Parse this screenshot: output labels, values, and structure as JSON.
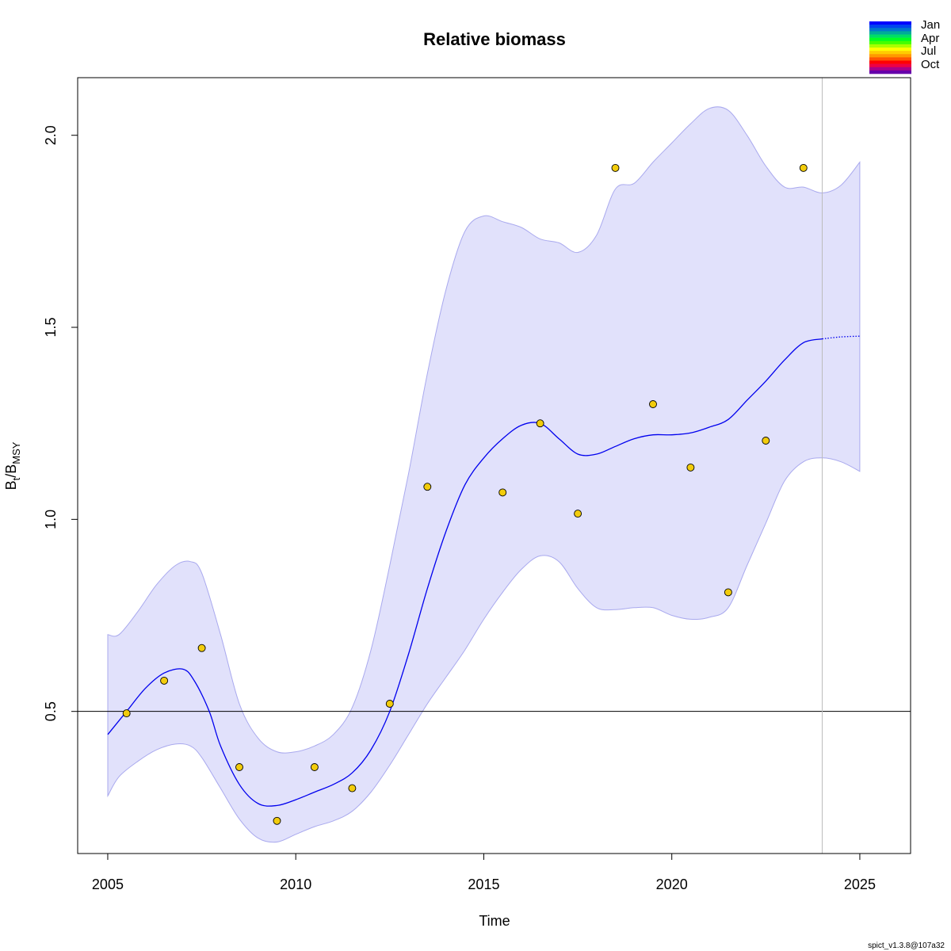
{
  "chart_data": {
    "type": "line",
    "title": "Relative biomass",
    "xlabel": "Time",
    "ylabel_main": "B",
    "ylabel_sub1": "t",
    "ylabel_slash": "/B",
    "ylabel_sub2": "MSY",
    "xlim": [
      2004.2,
      2026.35
    ],
    "ylim": [
      0.13,
      2.15
    ],
    "x_ticks": [
      2005,
      2010,
      2015,
      2020,
      2025
    ],
    "x_tick_labels": [
      "2005",
      "2010",
      "2015",
      "2020",
      "2025"
    ],
    "y_ticks": [
      0.5,
      1.0,
      1.5,
      2.0
    ],
    "y_tick_labels": [
      "0.5",
      "1.0",
      "1.5",
      "2.0"
    ],
    "reference_line_y": 0.5,
    "vertical_line_x": 2024,
    "grid": false,
    "colors": {
      "line": "#0000ee",
      "band_fill": "#e1e1fb",
      "band_edge": "#a9a9ee",
      "point_fill": "#f2cc0c",
      "point_edge": "#000000",
      "ref_line": "#000000",
      "vline": "#bdbdbd"
    },
    "estimate": {
      "x": [
        2005.0,
        2005.5,
        2006.0,
        2006.5,
        2007.0,
        2007.3,
        2007.7,
        2008.0,
        2008.5,
        2009.0,
        2009.5,
        2010.0,
        2010.5,
        2011.0,
        2011.5,
        2012.0,
        2012.5,
        2013.0,
        2013.5,
        2014.0,
        2014.5,
        2015.0,
        2015.5,
        2016.0,
        2016.5,
        2017.0,
        2017.5,
        2018.0,
        2018.5,
        2019.0,
        2019.5,
        2020.0,
        2020.5,
        2021.0,
        2021.5,
        2022.0,
        2022.5,
        2023.0,
        2023.5,
        2024.0
      ],
      "y": [
        0.44,
        0.5,
        0.56,
        0.6,
        0.61,
        0.58,
        0.5,
        0.41,
        0.31,
        0.26,
        0.255,
        0.27,
        0.29,
        0.31,
        0.34,
        0.4,
        0.5,
        0.65,
        0.82,
        0.97,
        1.09,
        1.16,
        1.21,
        1.245,
        1.25,
        1.21,
        1.17,
        1.17,
        1.19,
        1.21,
        1.22,
        1.22,
        1.225,
        1.24,
        1.26,
        1.31,
        1.36,
        1.415,
        1.46,
        1.47
      ]
    },
    "forecast": {
      "x": [
        2024.0,
        2024.5,
        2025.0
      ],
      "y": [
        1.47,
        1.475,
        1.477
      ]
    },
    "ci_upper": {
      "x": [
        2005.0,
        2005.3,
        2005.8,
        2006.3,
        2006.8,
        2007.2,
        2007.5,
        2008.0,
        2008.5,
        2009.0,
        2009.5,
        2010.0,
        2010.5,
        2011.0,
        2011.5,
        2012.0,
        2012.5,
        2013.0,
        2013.5,
        2014.0,
        2014.5,
        2015.0,
        2015.5,
        2016.0,
        2016.5,
        2017.0,
        2017.5,
        2018.0,
        2018.5,
        2019.0,
        2019.5,
        2020.0,
        2020.5,
        2021.0,
        2021.5,
        2022.0,
        2022.5,
        2023.0,
        2023.5,
        2024.0,
        2024.5,
        2025.0
      ],
      "y": [
        0.7,
        0.7,
        0.76,
        0.83,
        0.88,
        0.89,
        0.86,
        0.7,
        0.52,
        0.43,
        0.395,
        0.395,
        0.41,
        0.44,
        0.51,
        0.66,
        0.88,
        1.12,
        1.38,
        1.6,
        1.75,
        1.79,
        1.775,
        1.76,
        1.73,
        1.72,
        1.695,
        1.74,
        1.86,
        1.875,
        1.93,
        1.98,
        2.03,
        2.07,
        2.065,
        2.0,
        1.92,
        1.865,
        1.865,
        1.85,
        1.87,
        1.93
      ]
    },
    "ci_lower": {
      "x": [
        2005.0,
        2005.3,
        2005.8,
        2006.3,
        2006.8,
        2007.2,
        2007.5,
        2008.0,
        2008.5,
        2009.0,
        2009.5,
        2010.0,
        2010.5,
        2011.0,
        2011.5,
        2012.0,
        2012.5,
        2013.0,
        2013.5,
        2014.0,
        2014.5,
        2015.0,
        2015.5,
        2016.0,
        2016.5,
        2017.0,
        2017.5,
        2018.0,
        2018.5,
        2019.0,
        2019.5,
        2020.0,
        2020.5,
        2021.0,
        2021.5,
        2022.0,
        2022.5,
        2023.0,
        2023.5,
        2024.0,
        2024.5,
        2025.0
      ],
      "y": [
        0.28,
        0.33,
        0.37,
        0.4,
        0.415,
        0.41,
        0.38,
        0.3,
        0.22,
        0.17,
        0.16,
        0.18,
        0.2,
        0.215,
        0.24,
        0.29,
        0.36,
        0.44,
        0.52,
        0.59,
        0.66,
        0.74,
        0.81,
        0.87,
        0.905,
        0.89,
        0.82,
        0.77,
        0.765,
        0.77,
        0.77,
        0.75,
        0.74,
        0.745,
        0.77,
        0.88,
        0.99,
        1.1,
        1.15,
        1.16,
        1.15,
        1.125
      ]
    },
    "observations": {
      "x": [
        2005.5,
        2006.5,
        2007.5,
        2008.5,
        2009.5,
        2010.5,
        2011.5,
        2012.5,
        2013.5,
        2015.5,
        2016.5,
        2017.5,
        2018.5,
        2019.5,
        2020.5,
        2021.5,
        2022.5,
        2023.5
      ],
      "y": [
        0.495,
        0.58,
        0.665,
        0.355,
        0.215,
        0.355,
        0.3,
        0.52,
        1.085,
        1.07,
        1.25,
        1.015,
        1.915,
        1.3,
        1.135,
        0.81,
        1.205,
        1.915
      ]
    },
    "legend": {
      "labels": [
        "Jan",
        "Apr",
        "Jul",
        "Oct"
      ],
      "placement": "top-right",
      "colors": [
        "#0000ff",
        "#0044ee",
        "#0077cc",
        "#00aa99",
        "#00dd66",
        "#00ff22",
        "#44ff00",
        "#aaff00",
        "#ffff00",
        "#ffcc00",
        "#ff9900",
        "#ff5500",
        "#ff0000",
        "#ee0044",
        "#aa0088",
        "#6600aa"
      ]
    }
  },
  "footer": {
    "version": "spict_v1.3.8@107a32"
  }
}
